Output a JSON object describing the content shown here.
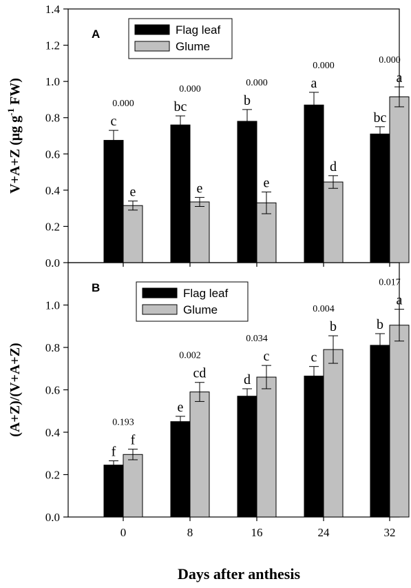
{
  "colors": {
    "flag_leaf": "#000000",
    "glume": "#c0c0c0",
    "axis": "#000000"
  },
  "xlabel": "Days after anthesis",
  "chart_data": [
    {
      "type": "bar",
      "panel_label": "A",
      "categories": [
        "0",
        "8",
        "16",
        "24",
        "32"
      ],
      "ylabel_main": "V+A+Z (μg g",
      "ylabel_sup": "-1",
      "ylabel_tail": " FW)",
      "ylim": [
        0,
        1.4
      ],
      "yticks": [
        "0.0",
        "0.2",
        "0.4",
        "0.6",
        "0.8",
        "1.0",
        "1.2",
        "1.4"
      ],
      "legend_position": "top-left",
      "series": [
        {
          "name": "Flag leaf",
          "values": [
            0.675,
            0.76,
            0.78,
            0.87,
            0.71
          ],
          "errors": [
            0.055,
            0.05,
            0.065,
            0.07,
            0.04
          ],
          "letters": [
            "c",
            "bc",
            "b",
            "a",
            "bc"
          ]
        },
        {
          "name": "Glume",
          "values": [
            0.315,
            0.335,
            0.33,
            0.445,
            0.915
          ],
          "errors": [
            0.025,
            0.025,
            0.06,
            0.035,
            0.055
          ],
          "letters": [
            "e",
            "e",
            "e",
            "d",
            "a"
          ]
        }
      ],
      "pvalues": [
        "0.000",
        "0.000",
        "0.000",
        "0.000",
        "0.000"
      ]
    },
    {
      "type": "bar",
      "panel_label": "B",
      "categories": [
        "0",
        "8",
        "16",
        "24",
        "32"
      ],
      "ylabel_main": "(A+Z)/(V+A+Z)",
      "ylabel_sup": "",
      "ylabel_tail": "",
      "ylim": [
        0,
        1.2
      ],
      "yticks": [
        "0.0",
        "0.2",
        "0.4",
        "0.6",
        "0.8",
        "1.0"
      ],
      "legend_position": "top-left",
      "series": [
        {
          "name": "Flag leaf",
          "values": [
            0.245,
            0.45,
            0.57,
            0.665,
            0.81
          ],
          "errors": [
            0.02,
            0.025,
            0.035,
            0.045,
            0.055
          ],
          "letters": [
            "f",
            "e",
            "d",
            "c",
            "b"
          ]
        },
        {
          "name": "Glume",
          "values": [
            0.295,
            0.59,
            0.66,
            0.79,
            0.905
          ],
          "errors": [
            0.025,
            0.045,
            0.055,
            0.065,
            0.075
          ],
          "letters": [
            "f",
            "cd",
            "c",
            "b",
            "a"
          ]
        }
      ],
      "pvalues": [
        "0.193",
        "0.002",
        "0.034",
        "0.004",
        "0.017"
      ]
    }
  ]
}
